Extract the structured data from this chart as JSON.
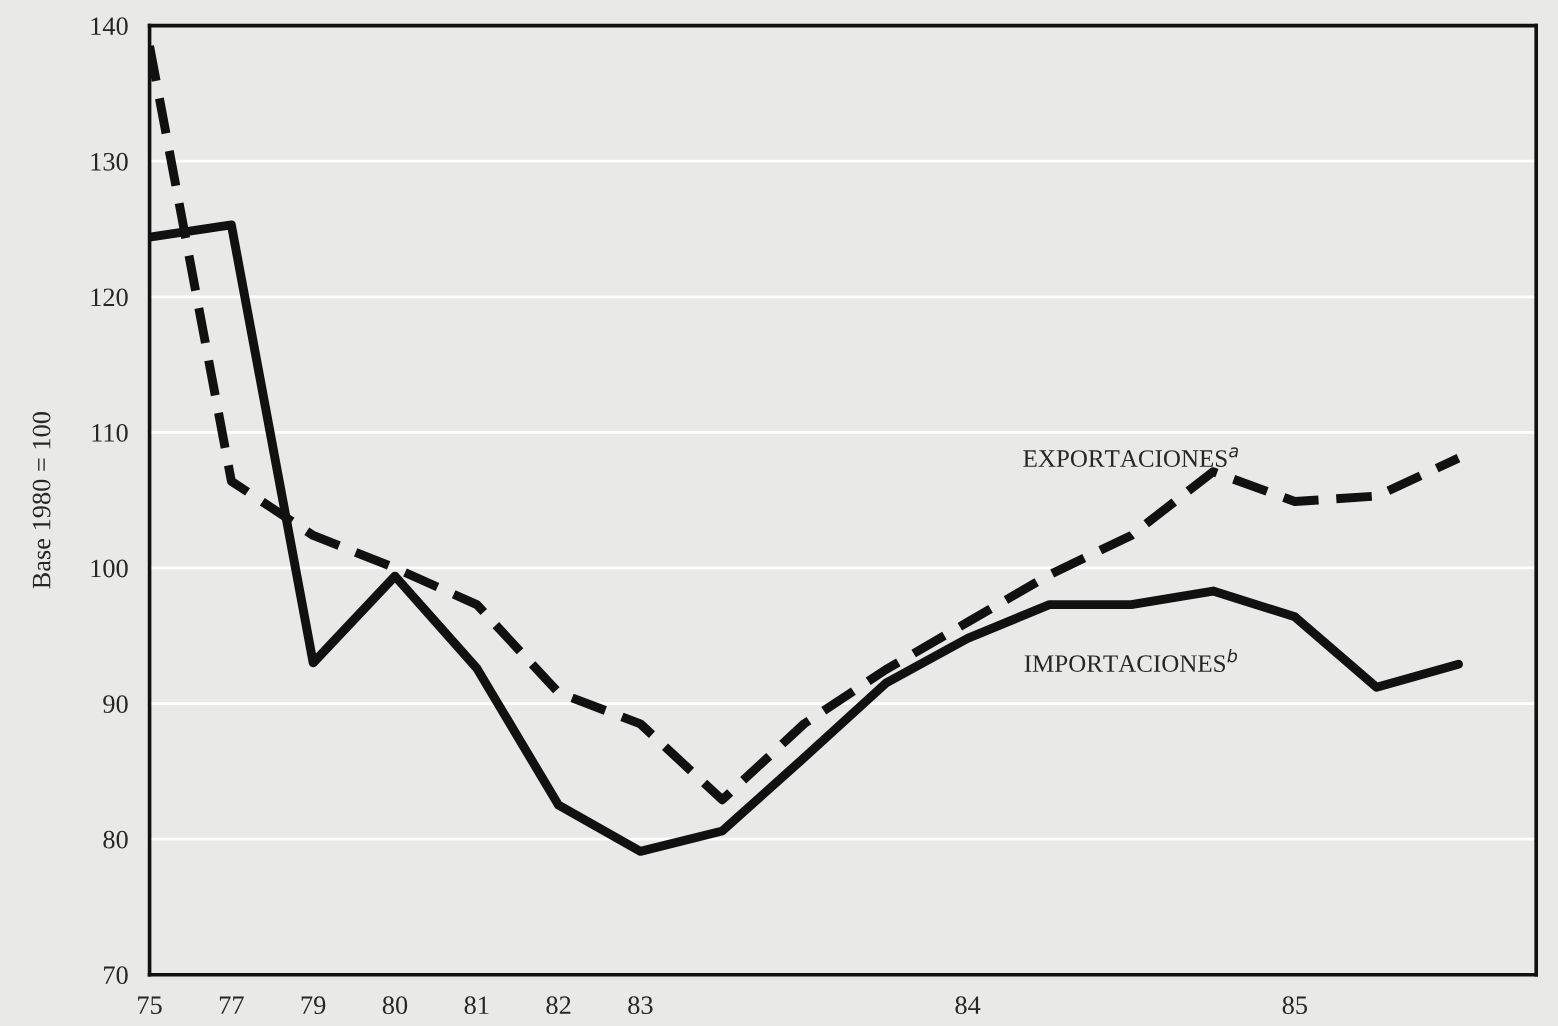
{
  "chart_data": {
    "type": "line",
    "ylabel": "Base 1980 = 100",
    "categories": [
      "75",
      "77",
      "79",
      "80",
      "81",
      "82",
      "83",
      null,
      null,
      null,
      "84",
      null,
      null,
      null,
      "85",
      null,
      null
    ],
    "series": [
      {
        "name": "EXPORTACIONES$^{a}$",
        "color": "#111111",
        "line_style": "dashed",
        "values": [
          138.5,
          106.4,
          102.4,
          100,
          97.3,
          90.8,
          88.5,
          82.9,
          88.5,
          92.5,
          96,
          99.5,
          102.4,
          107.1,
          104.9,
          105.3,
          108.1
        ]
      },
      {
        "name": "IMPORTACIONES$^{b}$",
        "color": "#111111",
        "line_style": "solid",
        "values": [
          124.4,
          125.3,
          93,
          99.4,
          92.6,
          82.5,
          79.1,
          80.6,
          86,
          91.5,
          94.8,
          97.3,
          97.3,
          98.3,
          96.4,
          91.2,
          92.9
        ]
      }
    ],
    "ylim": [
      70,
      140
    ],
    "yticks": [
      70,
      80,
      90,
      100,
      110,
      120,
      130,
      140
    ],
    "grid": "y",
    "legend": false,
    "marker": "none"
  }
}
